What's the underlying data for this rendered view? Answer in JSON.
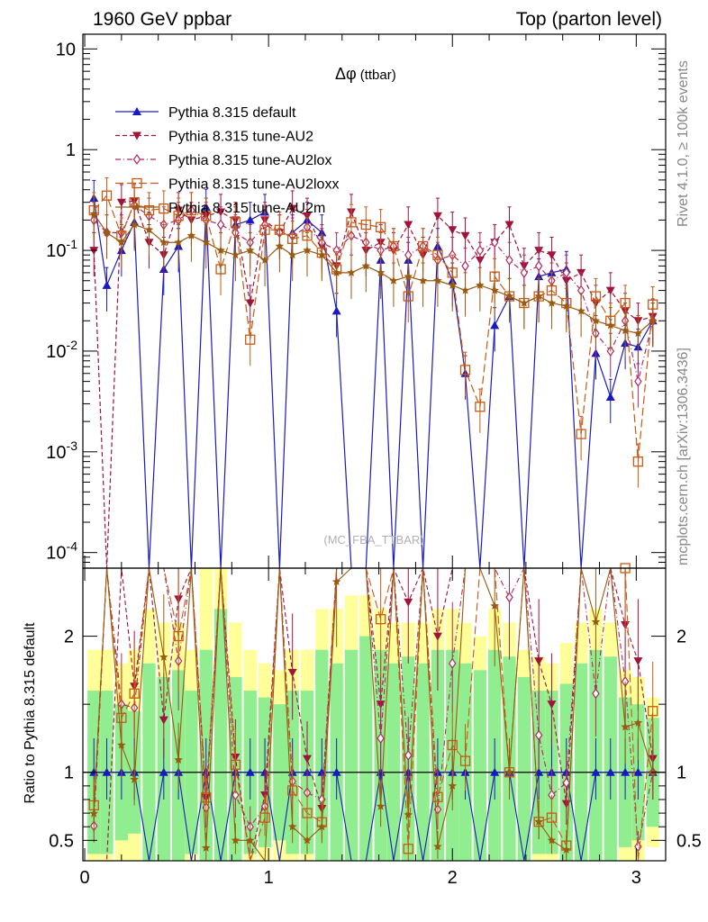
{
  "header": {
    "left": "1960 GeV ppbar",
    "right": "Top (parton level)"
  },
  "side_text": {
    "rivet": "Rivet 4.1.0, ≥ 100k events",
    "mcplots": "mcplots.cern.ch [arXiv:1306.3436]"
  },
  "watermark": "(MC_FBA_TTBAR)",
  "chart_data": {
    "type": "line",
    "title": "Δφ (ttbar)",
    "title_main": "Δφ",
    "title_sub": "(ttbar)",
    "xlabel": "",
    "ylabel": "",
    "yscale": "log",
    "xlim": [
      -0.01,
      3.16
    ],
    "ylim": [
      7e-05,
      14
    ],
    "x_ticks": [
      "0",
      "1",
      "2",
      "3"
    ],
    "y_ticks": [
      "10",
      "1",
      "10^-1",
      "10^-2",
      "10^-3",
      "10^-4"
    ],
    "x": [
      0.05,
      0.12,
      0.2,
      0.27,
      0.35,
      0.43,
      0.51,
      0.58,
      0.66,
      0.74,
      0.82,
      0.9,
      0.98,
      1.06,
      1.13,
      1.21,
      1.29,
      1.37,
      1.45,
      1.53,
      1.61,
      1.68,
      1.76,
      1.84,
      1.92,
      2.0,
      2.07,
      2.15,
      2.23,
      2.31,
      2.39,
      2.47,
      2.54,
      2.62,
      2.7,
      2.78,
      2.86,
      2.94,
      3.01,
      3.09
    ],
    "series": [
      {
        "name": "Pythia 8.315 default",
        "color": "#1a1abf",
        "marker": "triangle-up",
        "dash": "solid",
        "values": [
          0.33,
          0.045,
          0.1,
          0.19,
          0,
          0.065,
          0.11,
          0,
          0.27,
          0,
          0.18,
          0.2,
          0.24,
          0,
          0.15,
          0.2,
          0.15,
          0.025,
          0,
          0,
          0.08,
          0,
          0.08,
          0,
          0.11,
          0.05,
          0.006,
          0,
          0.018,
          0.035,
          0,
          0.055,
          0.06,
          0.065,
          0,
          0.0095,
          0.0035,
          0.012,
          0.011,
          0.02
        ]
      },
      {
        "name": "Pythia 8.315 tune-AU2",
        "color": "#a0143c",
        "marker": "triangle-down",
        "dash": "dashed",
        "values": [
          0.1,
          0,
          0.3,
          0.31,
          0.12,
          0.09,
          0.25,
          0.2,
          0.22,
          0.24,
          0.2,
          0.03,
          0.2,
          0.15,
          0.26,
          0.22,
          0.11,
          0.07,
          0.24,
          0.1,
          0.12,
          0.1,
          0.18,
          0.09,
          0.22,
          0.16,
          0.14,
          0.08,
          0.12,
          0.18,
          0.07,
          0.1,
          0.09,
          0.05,
          0.06,
          0.03,
          0.04,
          0.025,
          0.02,
          0.022
        ]
      },
      {
        "name": "Pythia 8.315 tune-AU2lox",
        "color": "#b02860",
        "marker": "diamond",
        "dash": "dashdot",
        "values": [
          0.2,
          0.15,
          0.15,
          0.28,
          0.22,
          0.18,
          0.2,
          0.25,
          0.2,
          0.18,
          0.15,
          0.12,
          0.18,
          0.15,
          0.14,
          0.17,
          0.12,
          0.1,
          0.14,
          0.12,
          0.1,
          0.11,
          0.09,
          0.11,
          0.08,
          0.09,
          0.07,
          0.1,
          0.12,
          0.08,
          0.06,
          0.07,
          0.05,
          0.06,
          0.04,
          0.015,
          0.01,
          0.02,
          0.005,
          0.02
        ]
      },
      {
        "name": "Pythia 8.315 tune-AU2loxx",
        "color": "#c85a14",
        "marker": "square-open",
        "dash": "longdash",
        "values": [
          0.25,
          0.35,
          0.14,
          0.3,
          0.25,
          0.26,
          0.22,
          0.25,
          0.22,
          0.065,
          0.19,
          0.013,
          0.16,
          0.16,
          0.13,
          0.14,
          0.095,
          0.065,
          0.19,
          0.18,
          0.17,
          0.11,
          0.035,
          0.11,
          0.09,
          0.06,
          0.0065,
          0.0028,
          0.055,
          0.035,
          0.03,
          0.035,
          0.04,
          0.03,
          0.0015,
          0.035,
          0.02,
          0.03,
          0.0008,
          0.029
        ]
      },
      {
        "name": "Pythia 8.315 tune-AU2m",
        "color": "#9a5a10",
        "marker": "star",
        "dash": "solid",
        "values": [
          0.23,
          0.15,
          0.12,
          0.18,
          0.16,
          0.12,
          0.12,
          0.14,
          0.12,
          0.1,
          0.09,
          0.1,
          0.08,
          0.11,
          0.09,
          0.1,
          0.09,
          0.06,
          0.06,
          0.07,
          0.06,
          0.05,
          0.055,
          0.05,
          0.05,
          0.045,
          0.04,
          0.045,
          0.04,
          0.035,
          0.03,
          0.035,
          0.03,
          0.028,
          0.025,
          0.02,
          0.018,
          0.016,
          0.015,
          0.02
        ]
      }
    ],
    "ratio_panel": {
      "ylabel": "Ratio to Pythia 8.315 default",
      "ylim": [
        0.35,
        2.5
      ],
      "y_ticks": [
        "0.5",
        "1",
        "2"
      ],
      "reference_line": 1,
      "band_colors": {
        "inner": "#90ee90",
        "outer": "#ffff99"
      },
      "band_inner_halfwidth": [
        0.6,
        0.6,
        0.5,
        0.45,
        0.8,
        0.7,
        0.75,
        0.6,
        0.9,
        1.2,
        0.7,
        0.6,
        0.55,
        0.5,
        0.6,
        0.6,
        0.9,
        0.8,
        0.9,
        1.0,
        0.9,
        0.8,
        0.85,
        0.8,
        0.9,
        0.9,
        0.8,
        0.75,
        0.9,
        0.85,
        0.7,
        0.6,
        0.6,
        0.65,
        0.8,
        0.9,
        0.85,
        0.55,
        0.5,
        0.4
      ],
      "band_outer_halfwidth": [
        0.9,
        0.9,
        0.8,
        0.9,
        1.2,
        1.1,
        1.1,
        0.9,
        1.5,
        1.5,
        1.1,
        0.9,
        0.8,
        0.75,
        0.9,
        0.9,
        1.2,
        1.2,
        1.3,
        1.3,
        1.2,
        1.1,
        1.1,
        1.1,
        1.2,
        1.2,
        1.1,
        1.0,
        1.2,
        1.1,
        0.9,
        0.85,
        0.8,
        0.95,
        1.1,
        1.2,
        1.1,
        0.75,
        0.7,
        0.55
      ]
    }
  }
}
